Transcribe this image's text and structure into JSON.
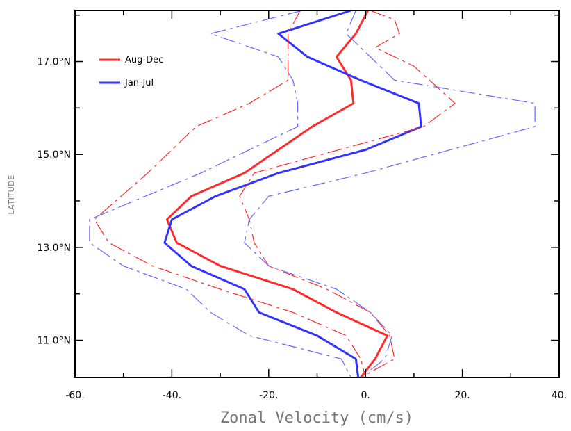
{
  "chart_data": {
    "type": "line",
    "xlabel": "Zonal Velocity (cm/s)",
    "ylabel": "LATITUDE",
    "xlim": [
      -60,
      40
    ],
    "ylim": [
      10.2,
      18.1
    ],
    "x_ticks": [
      {
        "value": -60,
        "label": "-60."
      },
      {
        "value": -40,
        "label": "-40."
      },
      {
        "value": -20,
        "label": "-20."
      },
      {
        "value": 0,
        "label": "0."
      },
      {
        "value": 20,
        "label": "20."
      },
      {
        "value": 40,
        "label": "40."
      }
    ],
    "y_ticks": [
      {
        "value": 11,
        "label": "11.0°N"
      },
      {
        "value": 13,
        "label": "13.0°N"
      },
      {
        "value": 15,
        "label": "15.0°N"
      },
      {
        "value": 17,
        "label": "17.0°N"
      }
    ],
    "legend_placement": "top-left",
    "grid": false,
    "series": [
      {
        "name": "Aug-Dec",
        "color": "#ff2a2a",
        "style": "solid",
        "width": 3,
        "legend": true,
        "points": [
          [
            0.5,
            18.1
          ],
          [
            -2,
            17.6
          ],
          [
            -6,
            17.1
          ],
          [
            -3,
            16.6
          ],
          [
            -2.5,
            16.1
          ],
          [
            -11,
            15.6
          ],
          [
            -25,
            14.6
          ],
          [
            -36,
            14.1
          ],
          [
            -41,
            13.6
          ],
          [
            -39,
            13.1
          ],
          [
            -30,
            12.6
          ],
          [
            -15,
            12.1
          ],
          [
            -6,
            11.6
          ],
          [
            4.5,
            11.1
          ],
          [
            2,
            10.6
          ],
          [
            -1,
            10.2
          ]
        ]
      },
      {
        "name": "Jan-Jul",
        "color": "#3333ff",
        "style": "solid",
        "width": 3,
        "legend": true,
        "points": [
          [
            -3,
            18.1
          ],
          [
            -18,
            17.6
          ],
          [
            -12,
            17.1
          ],
          [
            -1,
            16.6
          ],
          [
            11,
            16.1
          ],
          [
            11.5,
            15.6
          ],
          [
            0,
            15.1
          ],
          [
            -18,
            14.6
          ],
          [
            -31,
            14.1
          ],
          [
            -40,
            13.6
          ],
          [
            -41.5,
            13.1
          ],
          [
            -36,
            12.6
          ],
          [
            -25,
            12.1
          ],
          [
            -22,
            11.6
          ],
          [
            -10,
            11.1
          ],
          [
            -2,
            10.6
          ],
          [
            -1.5,
            10.2
          ]
        ]
      },
      {
        "name": "",
        "color": "#ff2a2a",
        "style": "dashdot",
        "width": 1.2,
        "legend": false,
        "points": [
          [
            -13.5,
            18.1
          ],
          [
            -16,
            17.6
          ],
          [
            -16,
            16.6
          ],
          [
            -24,
            16.1
          ],
          [
            -35,
            15.6
          ],
          [
            -45,
            14.6
          ],
          [
            -56,
            13.6
          ],
          [
            -53,
            13.1
          ],
          [
            -44,
            12.6
          ],
          [
            -30,
            12.1
          ],
          [
            -15,
            11.6
          ],
          [
            -4,
            11.1
          ],
          [
            -1,
            10.6
          ],
          [
            0,
            10.2
          ]
        ]
      },
      {
        "name": "",
        "color": "#ff2a2a",
        "style": "dashdot",
        "width": 1.2,
        "legend": false,
        "points": [
          [
            1,
            18.1
          ],
          [
            6,
            17.9
          ],
          [
            7,
            17.6
          ],
          [
            2,
            17.3
          ],
          [
            10,
            16.9
          ],
          [
            18.5,
            16.1
          ],
          [
            12,
            15.6
          ],
          [
            -23,
            14.6
          ],
          [
            -26,
            14.1
          ],
          [
            -24,
            13.6
          ],
          [
            -23,
            13.1
          ],
          [
            -20,
            12.6
          ],
          [
            -8,
            12.1
          ],
          [
            1,
            11.6
          ],
          [
            5,
            11.1
          ],
          [
            6,
            10.6
          ],
          [
            -1,
            10.2
          ]
        ]
      },
      {
        "name": "",
        "color": "#6666ff",
        "style": "dashdot",
        "width": 1.2,
        "legend": false,
        "points": [
          [
            -13,
            18.1
          ],
          [
            -32,
            17.6
          ],
          [
            -18,
            17.1
          ],
          [
            -15,
            16.6
          ],
          [
            -14,
            16.1
          ],
          [
            -14,
            15.6
          ],
          [
            -34,
            14.6
          ],
          [
            -57,
            13.6
          ],
          [
            -57,
            13.1
          ],
          [
            -50,
            12.6
          ],
          [
            -37,
            12.1
          ],
          [
            -32,
            11.6
          ],
          [
            -24,
            11.1
          ],
          [
            -5,
            10.6
          ],
          [
            -3,
            10.2
          ]
        ]
      },
      {
        "name": "",
        "color": "#6666ff",
        "style": "dashdot",
        "width": 1.2,
        "legend": false,
        "points": [
          [
            -2,
            18.1
          ],
          [
            -4,
            17.6
          ],
          [
            6,
            16.6
          ],
          [
            35,
            16.1
          ],
          [
            35,
            15.6
          ],
          [
            0,
            14.6
          ],
          [
            -20,
            14.1
          ],
          [
            -24,
            13.6
          ],
          [
            -25,
            13.1
          ],
          [
            -20,
            12.6
          ],
          [
            -6,
            12.1
          ],
          [
            1,
            11.6
          ],
          [
            5.5,
            11.1
          ],
          [
            4,
            10.6
          ],
          [
            -1,
            10.2
          ]
        ]
      }
    ]
  }
}
